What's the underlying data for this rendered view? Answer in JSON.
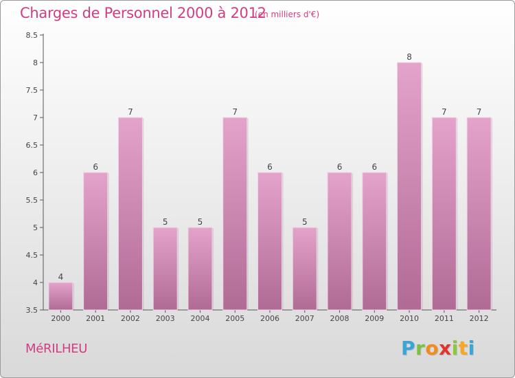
{
  "header": {
    "title": "Charges de Personnel 2000 à 2012",
    "subtitle": "(en milliers d'€)"
  },
  "footer": {
    "commune": "MéRILHEU",
    "logo_letters": [
      "P",
      "r",
      "o",
      "x",
      "i",
      "t",
      "i"
    ],
    "logo_colors": [
      "#3aa6d8",
      "#7cc242",
      "#f28c1e",
      "#e2342c",
      "#8dc63f",
      "#f7a823",
      "#3aa6d8"
    ]
  },
  "colors": {
    "bar_top": "#e4a3cb",
    "bar_bottom": "#b06b95",
    "accent": "#d23c83"
  },
  "chart_data": {
    "type": "bar",
    "title": "Charges de Personnel 2000 à 2012",
    "subtitle": "(en milliers d'€)",
    "categories": [
      "2000",
      "2001",
      "2002",
      "2003",
      "2004",
      "2005",
      "2006",
      "2007",
      "2008",
      "2009",
      "2010",
      "2011",
      "2012"
    ],
    "values": [
      4,
      6,
      7,
      5,
      5,
      7,
      6,
      5,
      6,
      6,
      8,
      7,
      7
    ],
    "data_labels": [
      "4",
      "6",
      "7",
      "5",
      "5",
      "7",
      "6",
      "5",
      "6",
      "6",
      "8",
      "7",
      "7"
    ],
    "ylim": [
      3.5,
      8.5
    ],
    "yticks": [
      "3.5",
      "4",
      "4.5",
      "5",
      "5.5",
      "6",
      "6.5",
      "7",
      "7.5",
      "8",
      "8.5"
    ],
    "grid": false,
    "legend": "none"
  }
}
